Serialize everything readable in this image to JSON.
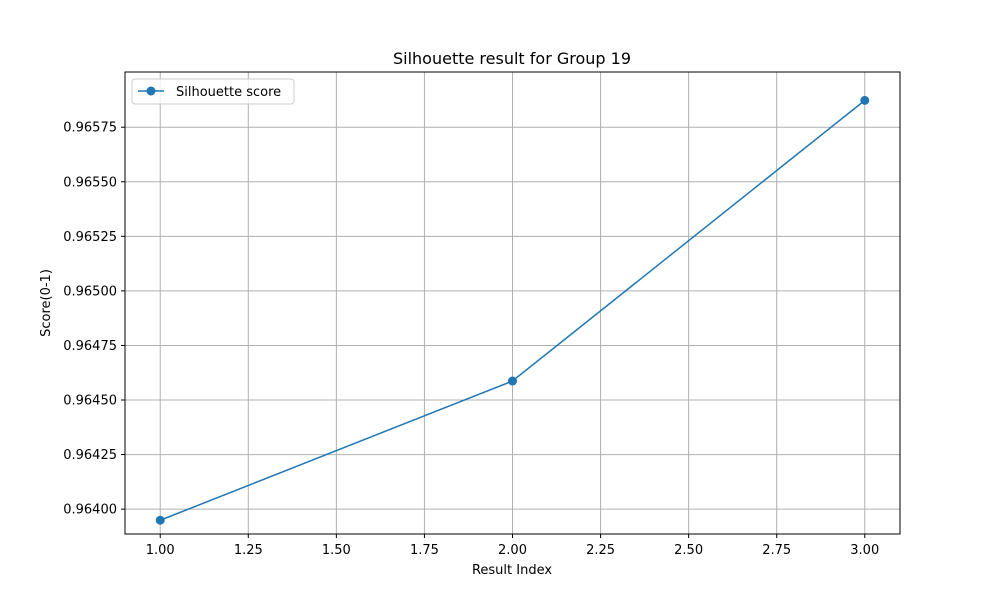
{
  "chart_data": {
    "type": "line",
    "title": "Silhouette result for Group 19",
    "xlabel": "Result Index",
    "ylabel": "Score(0-1)",
    "xlim": [
      0.9,
      3.1
    ],
    "ylim": [
      0.963886,
      0.966003
    ],
    "x_ticks": [
      1.0,
      1.25,
      1.5,
      1.75,
      2.0,
      2.25,
      2.5,
      2.75,
      3.0
    ],
    "x_tick_labels": [
      "1.00",
      "1.25",
      "1.50",
      "1.75",
      "2.00",
      "2.25",
      "2.50",
      "2.75",
      "3.00"
    ],
    "y_ticks": [
      0.964,
      0.96425,
      0.9645,
      0.96475,
      0.965,
      0.96525,
      0.9655,
      0.96575
    ],
    "y_tick_labels": [
      "0.96400",
      "0.96425",
      "0.96450",
      "0.96475",
      "0.96500",
      "0.96525",
      "0.96550",
      "0.96575"
    ],
    "grid": true,
    "legend_position": "top-left",
    "series": [
      {
        "name": "Silhouette score",
        "color": "#1f77b4",
        "marker": "circle",
        "x": [
          1.0,
          2.0,
          3.0
        ],
        "y": [
          0.963949,
          0.964587,
          0.965873
        ]
      }
    ]
  }
}
